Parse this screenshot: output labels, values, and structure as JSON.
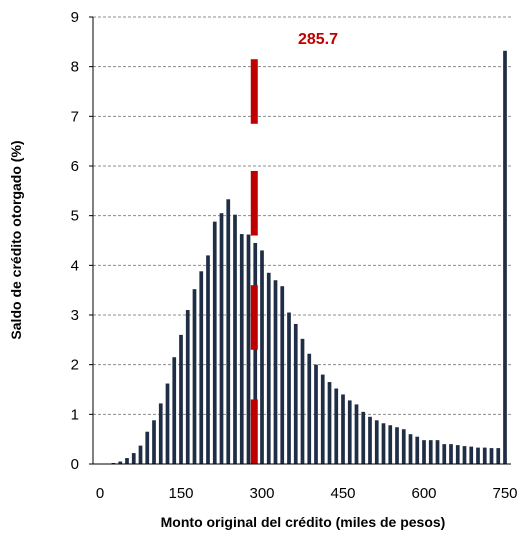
{
  "chart_data": {
    "type": "bar",
    "xlabel": "Monto original del crédito (miles de pesos)",
    "ylabel": "Saldo de crédito otorgado (%)",
    "ylim": [
      0,
      9
    ],
    "xlim": [
      0,
      750
    ],
    "x_ticks": [
      0,
      150,
      300,
      450,
      600,
      750
    ],
    "y_ticks": [
      0,
      1,
      2,
      3,
      4,
      5,
      6,
      7,
      8,
      9
    ],
    "grid": "horizontal-dashed",
    "bar_color": "#1f2d45",
    "bin_width": 12.5,
    "x": [
      0,
      12.5,
      25,
      37.5,
      50,
      62.5,
      75,
      87.5,
      100,
      112.5,
      125,
      137.5,
      150,
      162.5,
      175,
      187.5,
      200,
      212.5,
      225,
      237.5,
      250,
      262.5,
      275,
      287.5,
      300,
      312.5,
      325,
      337.5,
      350,
      362.5,
      375,
      387.5,
      400,
      412.5,
      425,
      437.5,
      450,
      462.5,
      475,
      487.5,
      500,
      512.5,
      525,
      537.5,
      550,
      562.5,
      575,
      587.5,
      600,
      612.5,
      625,
      637.5,
      650,
      662.5,
      675,
      687.5,
      700,
      712.5,
      725,
      737.5,
      750
    ],
    "values": [
      0.01,
      0.01,
      0.02,
      0.05,
      0.12,
      0.22,
      0.37,
      0.65,
      0.88,
      1.22,
      1.62,
      2.15,
      2.6,
      3.1,
      3.52,
      3.88,
      4.2,
      4.88,
      5.05,
      5.33,
      5.02,
      4.63,
      4.62,
      4.45,
      4.3,
      3.85,
      3.7,
      3.58,
      3.05,
      2.82,
      2.52,
      2.22,
      2.0,
      1.8,
      1.65,
      1.52,
      1.4,
      1.28,
      1.2,
      1.05,
      0.95,
      0.88,
      0.82,
      0.78,
      0.74,
      0.7,
      0.6,
      0.55,
      0.48,
      0.48,
      0.48,
      0.4,
      0.4,
      0.38,
      0.36,
      0.35,
      0.33,
      0.33,
      0.32,
      0.32,
      8.32
    ],
    "marker": {
      "x": 285.7,
      "label": "285.7",
      "color": "#c00000",
      "segments": [
        [
          0,
          1.3
        ],
        [
          2.3,
          3.6
        ],
        [
          4.6,
          5.9
        ],
        [
          6.85,
          8.15
        ]
      ]
    }
  }
}
